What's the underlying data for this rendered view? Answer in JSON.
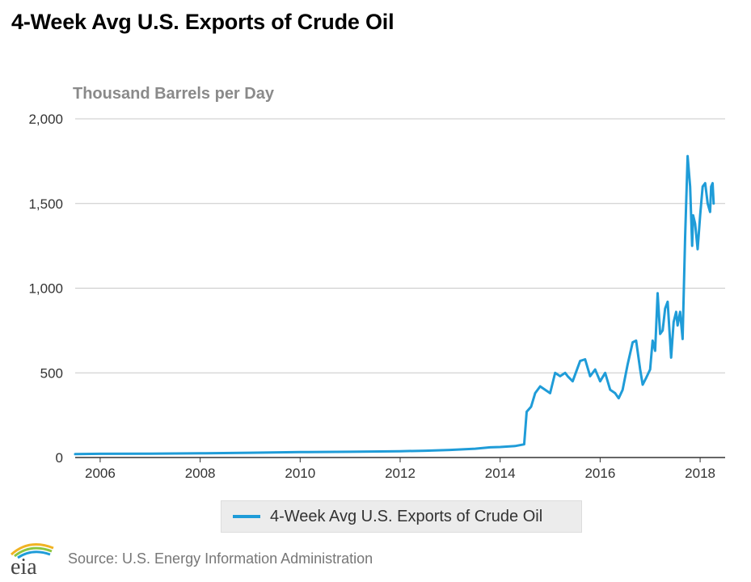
{
  "page": {
    "title": "4-Week Avg U.S. Exports of Crude Oil",
    "source": "Source: U.S. Energy Information Administration",
    "logo_text": "eia"
  },
  "colors": {
    "series": "#1f9cd8",
    "grid": "#c8c8c8",
    "axis": "#333333"
  },
  "chart_data": {
    "type": "line",
    "title": "4-Week Avg U.S. Exports of Crude Oil",
    "ylabel": "Thousand Barrels per Day",
    "xlabel": "",
    "xlim": [
      2005.5,
      2018.5
    ],
    "ylim": [
      0,
      2000
    ],
    "yticks": [
      0,
      500,
      1000,
      1500,
      2000
    ],
    "ytick_labels": [
      "0",
      "500",
      "1,000",
      "1,500",
      "2,000"
    ],
    "xticks": [
      2006,
      2008,
      2010,
      2012,
      2014,
      2016,
      2018
    ],
    "xtick_labels": [
      "2006",
      "2008",
      "2010",
      "2012",
      "2014",
      "2016",
      "2018"
    ],
    "grid": true,
    "legend": "bottom-center",
    "series": [
      {
        "name": "4-Week Avg U.S. Exports of Crude Oil",
        "color": "#1f9cd8",
        "x": [
          2005.5,
          2006.0,
          2007.0,
          2008.0,
          2009.0,
          2010.0,
          2011.0,
          2012.0,
          2012.5,
          2013.0,
          2013.5,
          2013.8,
          2014.0,
          2014.3,
          2014.48,
          2014.53,
          2014.62,
          2014.7,
          2014.8,
          2014.9,
          2015.0,
          2015.1,
          2015.2,
          2015.3,
          2015.35,
          2015.45,
          2015.6,
          2015.7,
          2015.8,
          2015.9,
          2016.0,
          2016.1,
          2016.2,
          2016.3,
          2016.37,
          2016.45,
          2016.55,
          2016.65,
          2016.72,
          2016.8,
          2016.85,
          2016.92,
          2017.0,
          2017.05,
          2017.1,
          2017.15,
          2017.2,
          2017.25,
          2017.3,
          2017.35,
          2017.42,
          2017.47,
          2017.52,
          2017.55,
          2017.6,
          2017.65,
          2017.7,
          2017.75,
          2017.8,
          2017.84,
          2017.86,
          2017.9,
          2017.95,
          2018.0,
          2018.05,
          2018.1,
          2018.15,
          2018.2,
          2018.22,
          2018.25,
          2018.27
        ],
        "values": [
          20,
          22,
          23,
          25,
          28,
          32,
          34,
          37,
          40,
          45,
          52,
          60,
          62,
          68,
          78,
          270,
          300,
          380,
          420,
          400,
          380,
          500,
          480,
          500,
          480,
          450,
          570,
          580,
          480,
          520,
          450,
          500,
          400,
          380,
          350,
          400,
          550,
          680,
          690,
          520,
          430,
          470,
          520,
          690,
          630,
          970,
          730,
          750,
          880,
          920,
          590,
          800,
          860,
          780,
          860,
          700,
          1300,
          1780,
          1600,
          1250,
          1430,
          1380,
          1230,
          1430,
          1600,
          1620,
          1500,
          1450,
          1600,
          1620,
          1500
        ]
      }
    ]
  }
}
